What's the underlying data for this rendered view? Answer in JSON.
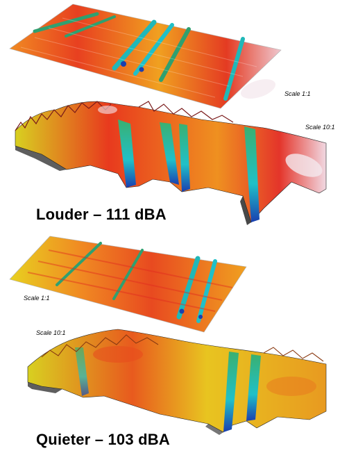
{
  "figure": {
    "louder": {
      "flat_scale_label": "Scale 1:1",
      "relief_scale_label": "Scale 10:1",
      "caption": "Louder – 111 dBA"
    },
    "quieter": {
      "flat_scale_label": "Scale 1:1",
      "relief_scale_label": "Scale 10:1",
      "caption": "Quieter – 103 dBA"
    }
  },
  "colors": {
    "high": "#e0301e",
    "mid": "#f0a020",
    "low_yellow": "#e8d820",
    "groove_green": "#2fa070",
    "groove_cyan": "#20c0c8",
    "groove_deep": "#1a3fb0",
    "peak_white": "#f4e8ee",
    "shadow": "#1a1a1a"
  }
}
